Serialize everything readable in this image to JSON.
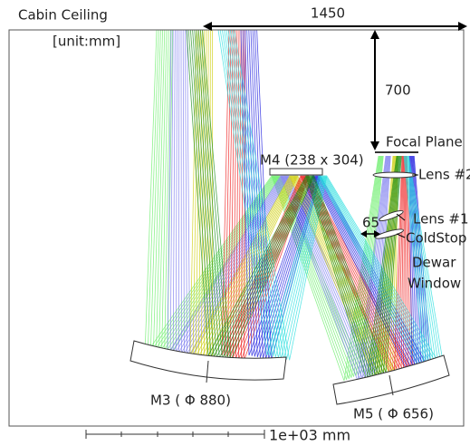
{
  "header": {
    "title": "Cabin Ceiling",
    "unit": "[unit:mm]"
  },
  "dimensions": {
    "width": "1450",
    "height": "700",
    "gap": "65"
  },
  "labels": {
    "focal_plane": "Focal Plane",
    "m4": "M4 (238 x 304)",
    "lens2": "Lens #2",
    "lens1": "Lens #1",
    "coldstop": "ColdStop",
    "dewar": "Dewar",
    "window": "Window",
    "m3": "M3 ( Φ 880)",
    "m5": "M5 ( Φ 656)"
  },
  "scale_bar": "1e+03 mm"
}
